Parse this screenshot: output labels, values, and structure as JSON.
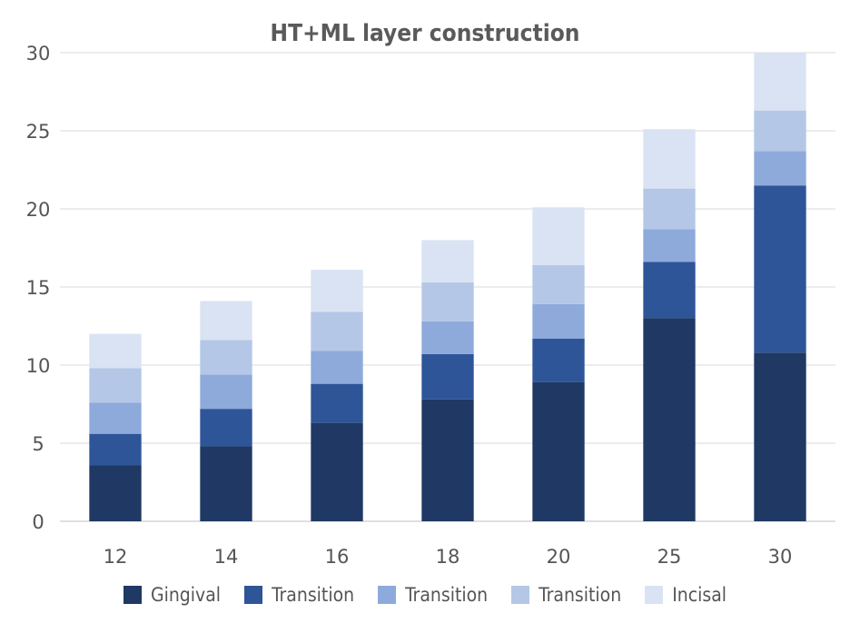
{
  "chart_data": {
    "type": "bar",
    "stacked": true,
    "title": "HT+ML layer construction",
    "categories": [
      "12",
      "14",
      "16",
      "18",
      "20",
      "25",
      "30"
    ],
    "series": [
      {
        "name": "Gingival",
        "color": "#1f3864",
        "values": [
          3.6,
          4.8,
          6.3,
          7.8,
          8.9,
          13.0,
          10.8
        ]
      },
      {
        "name": "Transition",
        "color": "#2e5597",
        "values": [
          2.0,
          2.4,
          2.5,
          2.9,
          2.8,
          3.6,
          10.7
        ]
      },
      {
        "name": "Transition",
        "color": "#8eaadb",
        "values": [
          2.0,
          2.2,
          2.1,
          2.1,
          2.2,
          2.1,
          2.2
        ]
      },
      {
        "name": "Transition",
        "color": "#b4c7e7",
        "values": [
          2.2,
          2.2,
          2.5,
          2.5,
          2.5,
          2.6,
          2.6
        ]
      },
      {
        "name": "Incisal",
        "color": "#dae3f3",
        "values": [
          2.2,
          2.5,
          2.7,
          2.7,
          3.7,
          3.8,
          3.7
        ]
      }
    ],
    "yticks": [
      0,
      5,
      10,
      15,
      20,
      25,
      30
    ],
    "ylim": [
      0,
      30
    ],
    "grid": true,
    "legend": "bottom",
    "xlabel": "",
    "ylabel": ""
  }
}
